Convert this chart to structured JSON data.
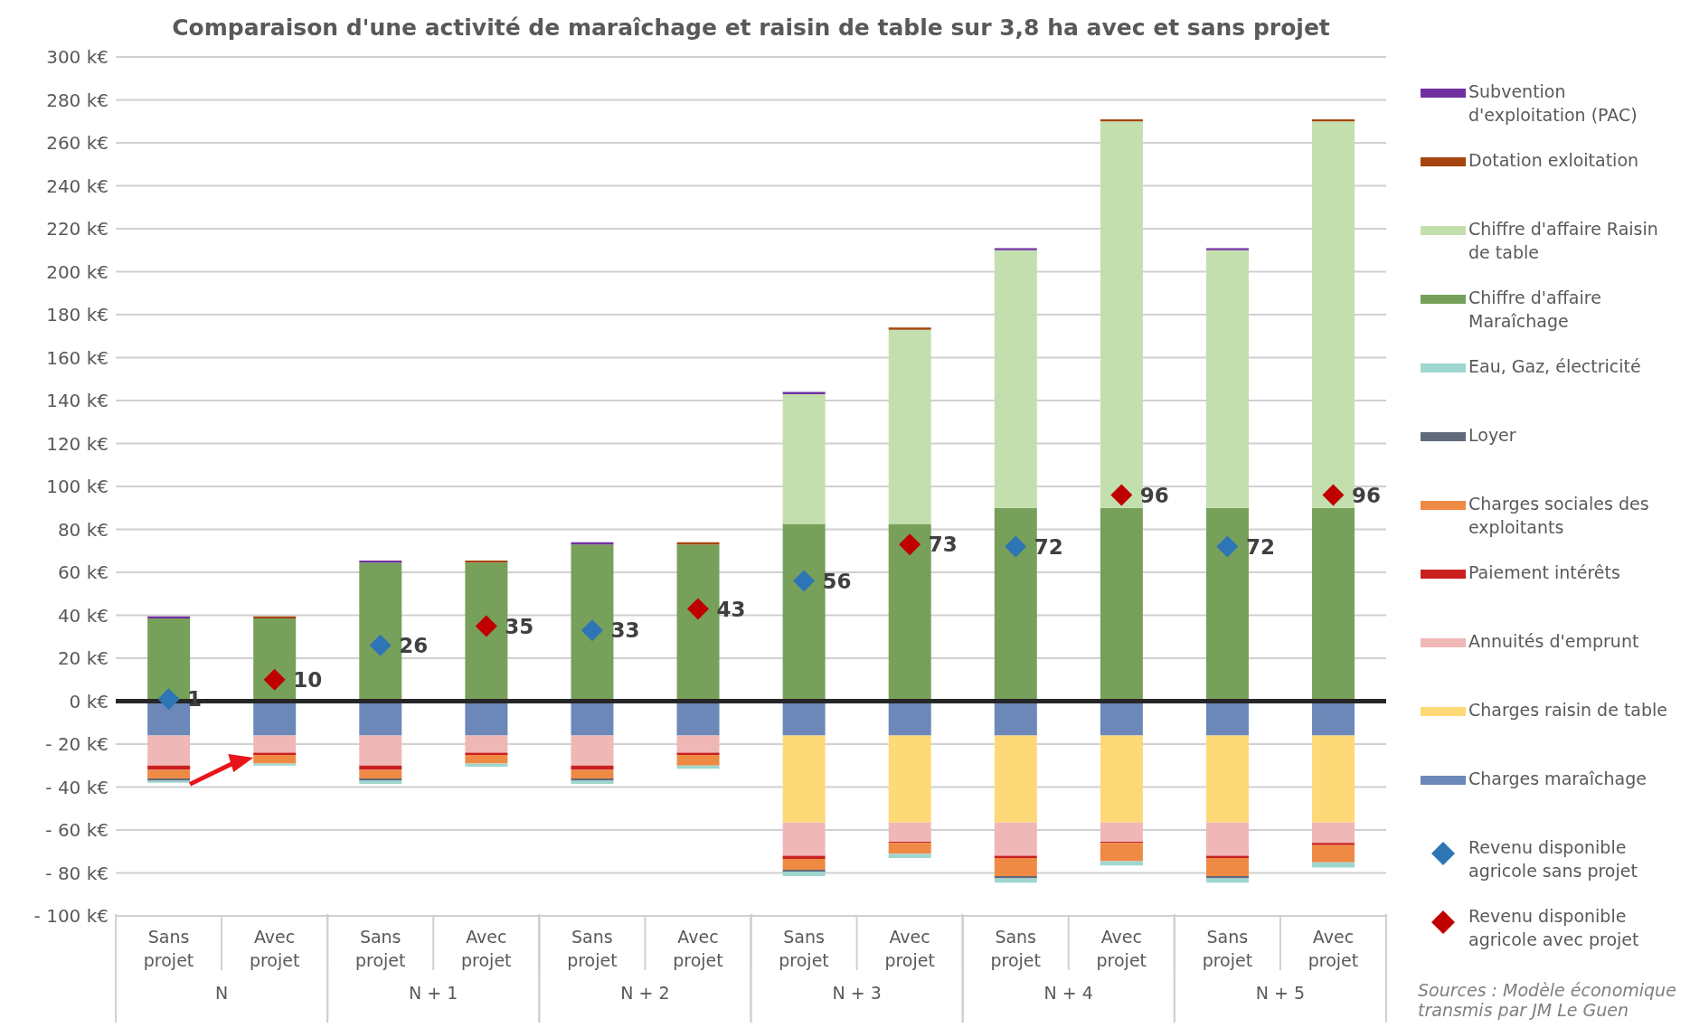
{
  "chart_data": {
    "type": "bar",
    "stacked": true,
    "title": "Comparaison d'une activité de maraîchage et raisin de table sur 3,8 ha avec et sans projet",
    "categories": [
      "Sans projet",
      "Avec projet",
      "Sans projet",
      "Avec projet",
      "Sans projet",
      "Avec projet",
      "Sans projet",
      "Avec projet",
      "Sans projet",
      "Avec projet",
      "Sans projet",
      "Avec projet"
    ],
    "series": [
      {
        "name": "Chiffre d'affaire Maraîchage",
        "color": "#77a05a",
        "values": [
          38.5,
          38.5,
          64.5,
          64.5,
          73,
          73,
          82.5,
          82.5,
          90,
          90,
          90,
          90
        ]
      },
      {
        "name": "Chiffre d'affaire Raisin de table",
        "color": "#c3dfae",
        "values": [
          0,
          0,
          0,
          0,
          0,
          0,
          60.5,
          90.5,
          120,
          180,
          120,
          180
        ]
      },
      {
        "name": "Dotation exloitation",
        "color": "#a5450f",
        "values": [
          0,
          1,
          0,
          1,
          0,
          1,
          0,
          1,
          0,
          1,
          0,
          1
        ]
      },
      {
        "name": "Subvention d'exploitation (PAC)",
        "color": "#7030a0",
        "values": [
          1,
          0,
          1,
          0,
          1,
          0,
          1,
          0,
          1,
          0,
          1,
          0
        ]
      },
      {
        "name": "Charges maraîchage",
        "color": "#6b88b8",
        "values": [
          -16,
          -16,
          -16,
          -16,
          -16,
          -16,
          -16,
          -16,
          -16,
          -16,
          -16,
          -16
        ]
      },
      {
        "name": "Charges raisin de table",
        "color": "#fdd977",
        "values": [
          0,
          0,
          0,
          0,
          0,
          0,
          -40.5,
          -40.5,
          -40.5,
          -40.5,
          -40.5,
          -40.5
        ]
      },
      {
        "name": "Annuités d'emprunt",
        "color": "#f0b7b7",
        "values": [
          -14,
          -8,
          -14,
          -8,
          -14,
          -8,
          -15.5,
          -9,
          -15.5,
          -9,
          -15.5,
          -9.5
        ]
      },
      {
        "name": "Paiement intérêts",
        "color": "#c9201f",
        "values": [
          -2,
          -1,
          -2,
          -1,
          -2,
          -1,
          -1.5,
          -0.5,
          -1,
          -0.5,
          -1,
          -1
        ]
      },
      {
        "name": "Charges sociales des exploitants",
        "color": "#ef8a45",
        "values": [
          -4,
          -4,
          -4,
          -4,
          -4,
          -5,
          -5,
          -5,
          -8.5,
          -8.5,
          -8.5,
          -8
        ]
      },
      {
        "name": "Loyer",
        "color": "#5f6b7a",
        "values": [
          -1,
          0,
          -1,
          0,
          -1,
          0,
          -1,
          0,
          -1,
          0,
          -1,
          0
        ]
      },
      {
        "name": "Eau, Gaz, électricité",
        "color": "#9fd6cf",
        "values": [
          -1,
          -1,
          -1.5,
          -1.5,
          -1.5,
          -1.5,
          -2,
          -2,
          -2,
          -2,
          -2,
          -2.5
        ]
      },
      {
        "name": "Revenu disponible agricole sans projet",
        "type": "scatter",
        "marker": "diamond",
        "color": "#2e75b6",
        "values": [
          1,
          null,
          26,
          null,
          33,
          null,
          56,
          null,
          72,
          null,
          72,
          null
        ],
        "value_labels": [
          "1",
          null,
          "26",
          null,
          "33",
          null,
          "56",
          null,
          "72",
          null,
          "72",
          null
        ]
      },
      {
        "name": "Revenu disponible agricole avec projet",
        "type": "scatter",
        "marker": "diamond",
        "color": "#c00000",
        "values": [
          null,
          10,
          null,
          35,
          null,
          43,
          null,
          73,
          null,
          96,
          null,
          96
        ],
        "value_labels": [
          null,
          "10",
          null,
          "35",
          null,
          "43",
          null,
          "73",
          null,
          "96",
          null,
          "96"
        ]
      }
    ],
    "ylim": [
      -100,
      300
    ],
    "yticks": [
      {
        "value": -100,
        "label": "- 100 k€"
      },
      {
        "value": -80,
        "label": "- 80 k€"
      },
      {
        "value": -60,
        "label": "- 60 k€"
      },
      {
        "value": -40,
        "label": "- 40 k€"
      },
      {
        "value": -20,
        "label": "- 20 k€"
      },
      {
        "value": 0,
        "label": "0 k€"
      },
      {
        "value": 20,
        "label": "20 k€"
      },
      {
        "value": 40,
        "label": "40 k€"
      },
      {
        "value": 60,
        "label": "60 k€"
      },
      {
        "value": 80,
        "label": "80 k€"
      },
      {
        "value": 100,
        "label": "100 k€"
      },
      {
        "value": 120,
        "label": "120 k€"
      },
      {
        "value": 140,
        "label": "140 k€"
      },
      {
        "value": 160,
        "label": "160 k€"
      },
      {
        "value": 180,
        "label": "180 k€"
      },
      {
        "value": 200,
        "label": "200 k€"
      },
      {
        "value": 220,
        "label": "220 k€"
      },
      {
        "value": 240,
        "label": "240 k€"
      },
      {
        "value": 260,
        "label": "260 k€"
      },
      {
        "value": 280,
        "label": "280 k€"
      },
      {
        "value": 300,
        "label": "300 k€"
      }
    ],
    "grid": "y",
    "legend": "right",
    "ref_lines": [
      {
        "axis": "y",
        "value": 0,
        "color": "#262626"
      }
    ],
    "annotations": [
      "N",
      "N + 1",
      "N + 2",
      "N + 3",
      "N + 4",
      "N + 5",
      "Sources : Modèle économique transmis par JM Le Guen"
    ]
  }
}
